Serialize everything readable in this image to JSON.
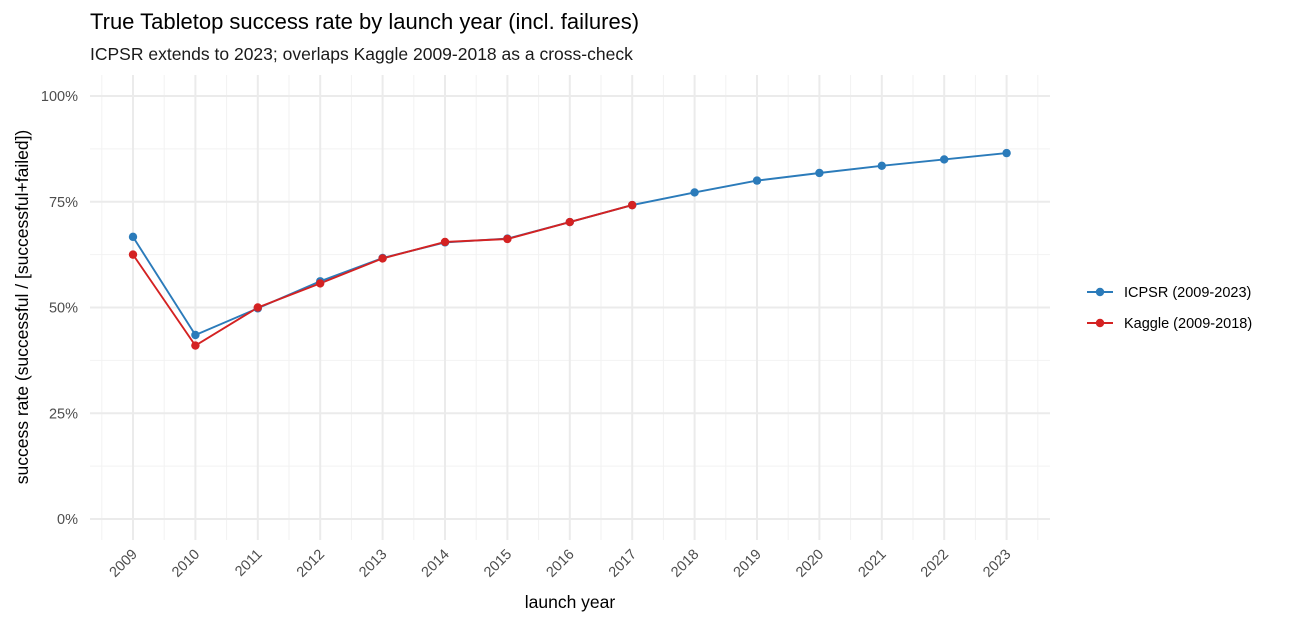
{
  "chart_data": {
    "type": "line",
    "title": "True Tabletop success rate by launch year (incl. failures)",
    "subtitle": "ICPSR extends to 2023; overlaps Kaggle 2009-2018 as a cross-check",
    "xlabel": "launch year",
    "ylabel": "success rate (successful / [successful+failed])",
    "x_tick_labels": [
      "2009",
      "2010",
      "2011",
      "2012",
      "2013",
      "2014",
      "2015",
      "2016",
      "2017",
      "2018",
      "2019",
      "2020",
      "2021",
      "2022",
      "2023"
    ],
    "y_tick_labels": [
      "0%",
      "25%",
      "50%",
      "75%",
      "100%"
    ],
    "y_ticks": [
      0,
      0.25,
      0.5,
      0.75,
      1.0
    ],
    "xlim": [
      2008.5,
      2023.5
    ],
    "ylim": [
      -0.05,
      1.05
    ],
    "grid": true,
    "legend_position": "right",
    "series": [
      {
        "name": "ICPSR (2009-2023)",
        "color": "#2b7bba",
        "x": [
          2009,
          2010,
          2011,
          2012,
          2013,
          2014,
          2015,
          2016,
          2017,
          2018,
          2019,
          2020,
          2021,
          2022,
          2023
        ],
        "values": [
          0.667,
          0.435,
          0.498,
          0.562,
          0.617,
          0.654,
          0.663,
          0.702,
          0.742,
          0.772,
          0.8,
          0.818,
          0.835,
          0.85,
          0.865
        ]
      },
      {
        "name": "Kaggle (2009-2018)",
        "color": "#d42222",
        "x": [
          2009,
          2010,
          2011,
          2012,
          2013,
          2014,
          2015,
          2016,
          2017
        ],
        "values": [
          0.625,
          0.41,
          0.5,
          0.557,
          0.616,
          0.655,
          0.662,
          0.702,
          0.742
        ]
      }
    ]
  }
}
